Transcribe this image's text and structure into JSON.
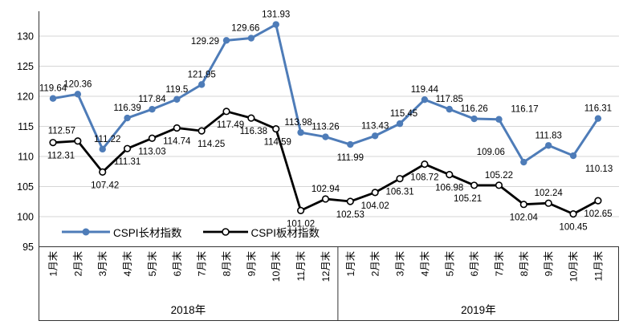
{
  "chart_data": {
    "type": "line",
    "title": "",
    "grid": "horizontal",
    "legend_position": "inside-bottom-left",
    "y_axis": {
      "min": 95,
      "max": 130,
      "tick_step": 5,
      "ticks": [
        95,
        100,
        105,
        110,
        115,
        120,
        125,
        130
      ]
    },
    "x_axis": {
      "groups": [
        {
          "year_label": "2018年",
          "months": [
            "1月末",
            "2月末",
            "3月末",
            "4月末",
            "5月末",
            "6月末",
            "7月末",
            "8月末",
            "9月末",
            "10月末",
            "11月末",
            "12月末"
          ]
        },
        {
          "year_label": "2019年",
          "months": [
            "1月末",
            "2月末",
            "3月末",
            "4月末",
            "5月末",
            "6月末",
            "7月末",
            "8月末",
            "9月末",
            "10月末",
            "11月末"
          ]
        }
      ]
    },
    "series": [
      {
        "name": "CSPI长材指数",
        "color": "#4E7CB8",
        "marker": "filled-circle",
        "line_width": 3,
        "values": [
          119.64,
          120.36,
          111.22,
          116.39,
          117.84,
          119.5,
          121.95,
          129.29,
          129.66,
          131.93,
          113.98,
          113.26,
          111.99,
          113.43,
          115.45,
          119.44,
          117.85,
          116.26,
          116.17,
          109.06,
          111.83,
          110.13,
          116.31
        ],
        "label_positions": [
          "above",
          "above",
          "above",
          "above",
          "above",
          "above",
          "above",
          "left",
          "above",
          "above",
          "above",
          "above",
          "below",
          "above",
          "above",
          "above",
          "above",
          "above",
          "above",
          "above",
          "above",
          "below",
          "above"
        ],
        "label_dx": [
          0,
          0,
          6,
          0,
          0,
          0,
          0,
          0,
          -7,
          0,
          -3,
          0,
          0,
          0,
          5,
          0,
          0,
          0,
          32,
          -41,
          0,
          32,
          0
        ]
      },
      {
        "name": "CSPI板材指数",
        "color": "#000000",
        "marker": "open-circle",
        "line_width": 2.8,
        "values": [
          112.31,
          112.57,
          107.42,
          111.31,
          113.03,
          114.74,
          114.25,
          117.49,
          116.38,
          114.59,
          101.02,
          102.94,
          102.53,
          104.02,
          106.31,
          108.72,
          106.98,
          105.21,
          105.22,
          102.04,
          102.24,
          100.45,
          102.65
        ],
        "label_positions": [
          "below",
          "above",
          "below",
          "below",
          "below",
          "below",
          "below",
          "below",
          "below",
          "below",
          "below",
          "above",
          "below",
          "below",
          "below",
          "below",
          "below",
          "below",
          "above",
          "below",
          "above",
          "below",
          "below"
        ],
        "label_dx": [
          10,
          -20,
          3,
          0,
          0,
          0,
          12,
          5,
          3,
          2,
          0,
          0,
          0,
          0,
          0,
          0,
          0,
          -8,
          0,
          0,
          0,
          0,
          0
        ]
      }
    ]
  },
  "colors": {
    "grid": "#D6D6D6",
    "axis": "#333333",
    "text": "#000000",
    "background": "#FFFFFF"
  }
}
